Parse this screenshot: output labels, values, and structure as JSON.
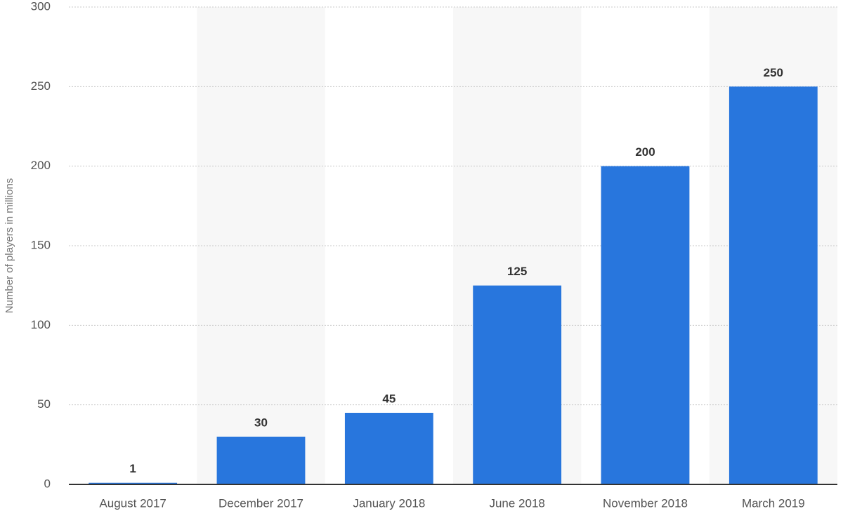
{
  "chart_data": {
    "type": "bar",
    "y_label": "Number of players in millions",
    "categories": [
      "August 2017",
      "December 2017",
      "January 2018",
      "June 2018",
      "November 2018",
      "March 2019"
    ],
    "values": [
      1,
      30,
      45,
      125,
      200,
      250
    ],
    "color": "#2876dd",
    "ylim": [
      0,
      300
    ],
    "yticks": [
      0,
      50,
      100,
      150,
      200,
      250,
      300
    ],
    "grid": true
  }
}
